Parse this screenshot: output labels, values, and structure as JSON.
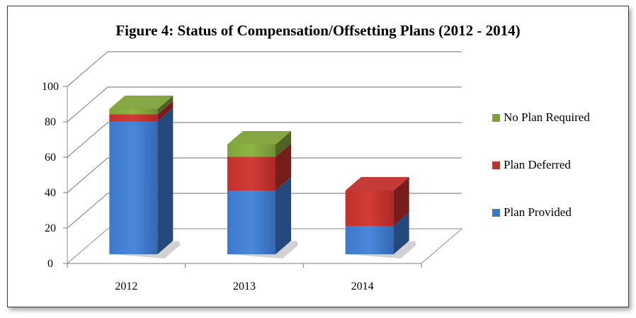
{
  "chart_data": {
    "type": "bar",
    "stacked": true,
    "three_d": true,
    "title": "Figure 4: Status of Compensation/Offsetting Plans (2012 - 2014)",
    "xlabel": "",
    "ylabel": "",
    "categories": [
      "2012",
      "2013",
      "2014"
    ],
    "series": [
      {
        "name": "Plan Provided",
        "values": [
          75,
          36,
          16
        ],
        "color": "#3a77c9"
      },
      {
        "name": "Plan Deferred",
        "values": [
          4,
          19,
          20
        ],
        "color": "#c0302c"
      },
      {
        "name": "No Plan Required",
        "values": [
          3,
          7,
          0
        ],
        "color": "#7ea23a"
      }
    ],
    "ylim": [
      0,
      100
    ],
    "yticks": [
      "0",
      "20",
      "40",
      "60",
      "80",
      "100"
    ],
    "legend_order": [
      "No Plan Required",
      "Plan Deferred",
      "Plan Provided"
    ],
    "legend_position": "right",
    "grid": true
  }
}
